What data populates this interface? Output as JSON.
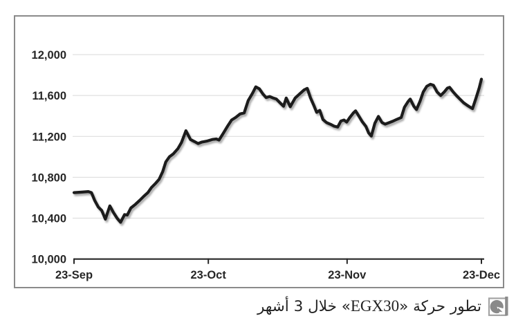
{
  "colors": {
    "background": "#ffffff",
    "plot_border": "#8a8a8a",
    "gridline": "#d9d9d9",
    "axis": "#262626",
    "tick_label": "#262626",
    "series_line": "#1a1a1a",
    "caption_text": "#222222",
    "icon_gray": "#8a8a8a",
    "icon_frame": "#a3a3a3"
  },
  "caption": {
    "prefix": "تطور حركة «",
    "ticker": "EGX30",
    "suffix": "» خلال 3 أشهر",
    "icon": "pie-chart-icon"
  },
  "chart_data": {
    "type": "line",
    "title": "",
    "series_name": "EGX30",
    "xlabel": "",
    "ylabel": "",
    "grid": true,
    "plot_border": true,
    "legend": false,
    "ylim": [
      10000,
      12000
    ],
    "y_step": 400,
    "x_range_days": 91,
    "y_ticks": [
      {
        "label": "10,000",
        "value": 10000
      },
      {
        "label": "10,400",
        "value": 10400
      },
      {
        "label": "10,800",
        "value": 10800
      },
      {
        "label": "11,200",
        "value": 11200
      },
      {
        "label": "11,600",
        "value": 11600
      },
      {
        "label": "12,000",
        "value": 12000
      }
    ],
    "x_ticks": [
      {
        "label": "23-Sep",
        "day": 0
      },
      {
        "label": "23-Oct",
        "day": 30
      },
      {
        "label": "23-Nov",
        "day": 61
      },
      {
        "label": "23-Dec",
        "day": 91
      }
    ],
    "points": [
      [
        0,
        10650
      ],
      [
        1.7,
        10655
      ],
      [
        3.2,
        10660
      ],
      [
        3.9,
        10650
      ],
      [
        4.6,
        10575
      ],
      [
        5.4,
        10510
      ],
      [
        6.2,
        10475
      ],
      [
        7.0,
        10390
      ],
      [
        8.0,
        10520
      ],
      [
        8.8,
        10455
      ],
      [
        9.7,
        10395
      ],
      [
        10.4,
        10360
      ],
      [
        11.3,
        10435
      ],
      [
        11.9,
        10430
      ],
      [
        12.7,
        10500
      ],
      [
        13.7,
        10535
      ],
      [
        14.7,
        10575
      ],
      [
        15.6,
        10615
      ],
      [
        16.5,
        10650
      ],
      [
        17.3,
        10700
      ],
      [
        18.2,
        10740
      ],
      [
        19.0,
        10780
      ],
      [
        19.8,
        10855
      ],
      [
        20.5,
        10950
      ],
      [
        21.3,
        11000
      ],
      [
        22.2,
        11030
      ],
      [
        23.2,
        11080
      ],
      [
        24.0,
        11140
      ],
      [
        25.0,
        11255
      ],
      [
        26.0,
        11170
      ],
      [
        26.9,
        11150
      ],
      [
        27.7,
        11130
      ],
      [
        28.6,
        11145
      ],
      [
        29.8,
        11155
      ],
      [
        30.9,
        11170
      ],
      [
        31.8,
        11175
      ],
      [
        32.4,
        11165
      ],
      [
        33.4,
        11235
      ],
      [
        34.3,
        11300
      ],
      [
        35.2,
        11360
      ],
      [
        36.1,
        11385
      ],
      [
        37.1,
        11420
      ],
      [
        38.0,
        11430
      ],
      [
        38.9,
        11550
      ],
      [
        39.9,
        11625
      ],
      [
        40.6,
        11685
      ],
      [
        41.4,
        11665
      ],
      [
        42.2,
        11615
      ],
      [
        42.9,
        11580
      ],
      [
        43.7,
        11590
      ],
      [
        44.5,
        11575
      ],
      [
        45.2,
        11565
      ],
      [
        46.0,
        11530
      ],
      [
        46.8,
        11495
      ],
      [
        47.4,
        11575
      ],
      [
        48.3,
        11490
      ],
      [
        49.4,
        11575
      ],
      [
        50.5,
        11620
      ],
      [
        51.4,
        11655
      ],
      [
        52.1,
        11670
      ],
      [
        52.8,
        11580
      ],
      [
        53.6,
        11500
      ],
      [
        54.2,
        11435
      ],
      [
        54.9,
        11455
      ],
      [
        55.6,
        11365
      ],
      [
        56.4,
        11335
      ],
      [
        57.3,
        11318
      ],
      [
        58.1,
        11300
      ],
      [
        58.9,
        11292
      ],
      [
        59.6,
        11350
      ],
      [
        60.3,
        11360
      ],
      [
        60.9,
        11340
      ],
      [
        61.6,
        11385
      ],
      [
        62.4,
        11430
      ],
      [
        62.9,
        11450
      ],
      [
        63.7,
        11393
      ],
      [
        64.4,
        11343
      ],
      [
        65.2,
        11298
      ],
      [
        65.8,
        11235
      ],
      [
        66.4,
        11203
      ],
      [
        67.2,
        11330
      ],
      [
        68.0,
        11395
      ],
      [
        68.8,
        11335
      ],
      [
        69.5,
        11320
      ],
      [
        70.3,
        11333
      ],
      [
        71.2,
        11348
      ],
      [
        72.2,
        11368
      ],
      [
        73.1,
        11385
      ],
      [
        73.8,
        11485
      ],
      [
        74.6,
        11540
      ],
      [
        75.1,
        11565
      ],
      [
        75.9,
        11495
      ],
      [
        76.5,
        11462
      ],
      [
        77.3,
        11545
      ],
      [
        78.0,
        11635
      ],
      [
        78.8,
        11690
      ],
      [
        79.6,
        11710
      ],
      [
        80.3,
        11700
      ],
      [
        81.1,
        11635
      ],
      [
        81.9,
        11600
      ],
      [
        82.7,
        11635
      ],
      [
        83.4,
        11672
      ],
      [
        83.9,
        11680
      ],
      [
        84.7,
        11635
      ],
      [
        85.4,
        11600
      ],
      [
        86.2,
        11565
      ],
      [
        87.0,
        11530
      ],
      [
        87.8,
        11505
      ],
      [
        88.5,
        11485
      ],
      [
        89.0,
        11472
      ],
      [
        89.8,
        11575
      ],
      [
        90.5,
        11675
      ],
      [
        91.0,
        11760
      ]
    ]
  }
}
